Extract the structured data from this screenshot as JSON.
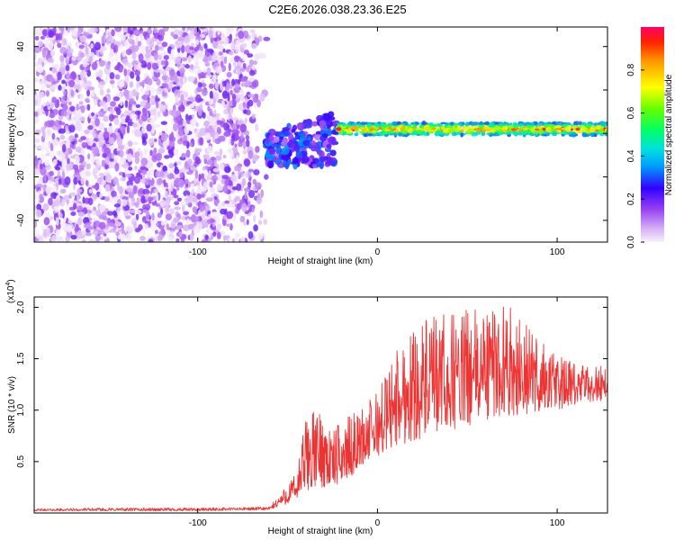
{
  "title": "C2E6.2026.038.23.36.E25",
  "chart_data": [
    {
      "type": "heatmap",
      "xlabel": "Height of straight line (km)",
      "ylabel": "Frequency (Hz)",
      "xlim": [
        -191,
        128
      ],
      "ylim": [
        -50,
        49
      ],
      "xticks": [
        "-100",
        "0",
        "100"
      ],
      "yticks": [
        "-40",
        "-20",
        "0",
        "20",
        "40"
      ],
      "colorbar": {
        "label": "Normalized spectral amplitude",
        "range": [
          0,
          1
        ],
        "ticks": [
          "0.0",
          "0.2",
          "0.4",
          "0.6",
          "0.8"
        ]
      },
      "regions": [
        {
          "x_range": [
            -191,
            -62
          ],
          "freq_range": [
            -50,
            49
          ],
          "amplitude_range": [
            0.0,
            0.2
          ]
        },
        {
          "x_range": [
            -62,
            -22
          ],
          "freq_range": [
            -15,
            10
          ],
          "amplitude_range": [
            0.1,
            0.35
          ]
        },
        {
          "x_range": [
            -22,
            128
          ],
          "freq_range": [
            -1,
            6
          ],
          "center_freq": 2,
          "amplitude_range": [
            0.3,
            1.0
          ]
        }
      ],
      "grid": false
    },
    {
      "type": "line",
      "xlabel": "Height of straight line (km)",
      "ylabel": "SNR (10 * v/v)",
      "multiplier": "(x10",
      "multiplier_exp": "4",
      "multiplier_close": ")",
      "xlim": [
        -191,
        128
      ],
      "ylim": [
        0,
        2.1
      ],
      "xticks": [
        "-100",
        "0",
        "100"
      ],
      "yticks": [
        "0.5",
        "1.0",
        "1.5",
        "2.0"
      ],
      "color": "#ee3333",
      "grid": false,
      "envelope": {
        "x": [
          -191,
          -150,
          -100,
          -60,
          -45,
          -40,
          -35,
          -30,
          -25,
          -20,
          -15,
          -10,
          0,
          10,
          20,
          40,
          60,
          70,
          80,
          100,
          110,
          128
        ],
        "baseline": [
          0.02,
          0.02,
          0.02,
          0.03,
          0.12,
          0.2,
          0.25,
          0.25,
          0.25,
          0.3,
          0.35,
          0.45,
          0.55,
          0.65,
          0.7,
          0.8,
          0.9,
          0.95,
          0.95,
          1.0,
          1.05,
          1.1
        ],
        "upper": [
          0.04,
          0.05,
          0.05,
          0.06,
          0.4,
          0.95,
          1.0,
          1.0,
          0.8,
          0.9,
          0.95,
          1.0,
          1.2,
          1.6,
          1.85,
          1.95,
          2.0,
          2.06,
          1.9,
          1.55,
          1.45,
          1.45
        ]
      }
    }
  ]
}
